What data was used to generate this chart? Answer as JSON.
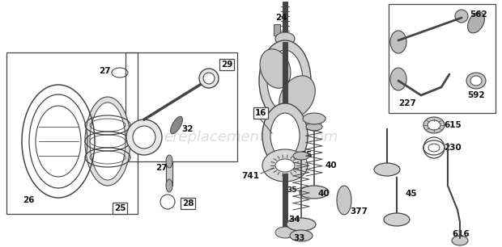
{
  "background_color": "#ffffff",
  "watermark_text": "ereplacementparts.com",
  "watermark_color": "#bbbbbb",
  "watermark_fontsize": 13,
  "fig_width": 6.2,
  "fig_height": 3.06,
  "dpi": 100,
  "line_color": "#444444",
  "label_fontsize": 7.5,
  "label_color": "#111111"
}
